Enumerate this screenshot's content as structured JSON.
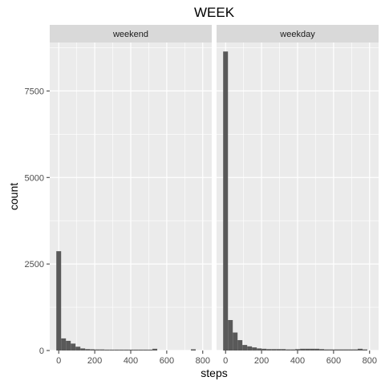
{
  "chart_data": {
    "type": "histogram",
    "title": "WEEK",
    "xlabel": "steps",
    "ylabel": "count",
    "xlim": [
      -50,
      850
    ],
    "ylim": [
      0,
      8900
    ],
    "x_ticks": [
      0,
      200,
      400,
      600,
      800
    ],
    "y_ticks": [
      0,
      2500,
      5000,
      7500
    ],
    "y_tick_labels": [
      "0",
      "2500",
      "5000",
      "7500"
    ],
    "bin_width": 26.7,
    "bin_starts": [
      -13.4,
      13.3,
      40.0,
      66.7,
      93.4,
      120.1,
      146.8,
      173.5,
      200.2,
      226.9,
      253.6,
      280.3,
      307.0,
      333.7,
      360.4,
      387.1,
      413.8,
      440.5,
      467.2,
      493.9,
      520.6,
      547.3,
      574.0,
      600.7,
      627.4,
      654.1,
      680.8,
      707.5,
      734.2,
      760.9,
      787.6
    ],
    "panels": [
      {
        "label": "weekend",
        "counts": [
          2870,
          350,
          280,
          200,
          110,
          60,
          40,
          35,
          30,
          30,
          25,
          25,
          25,
          25,
          25,
          25,
          25,
          25,
          25,
          25,
          50,
          0,
          0,
          0,
          0,
          0,
          0,
          0,
          35,
          0,
          0
        ]
      },
      {
        "label": "weekday",
        "counts": [
          8640,
          880,
          520,
          300,
          160,
          120,
          90,
          60,
          50,
          40,
          40,
          40,
          40,
          30,
          30,
          40,
          50,
          50,
          50,
          50,
          40,
          30,
          30,
          30,
          30,
          30,
          30,
          30,
          50,
          30,
          0
        ]
      }
    ],
    "bar_color": "#595959",
    "panel_background": "#ebebeb",
    "strip_background": "#d9d9d9",
    "grid": true,
    "grid_color": "#ffffff"
  }
}
